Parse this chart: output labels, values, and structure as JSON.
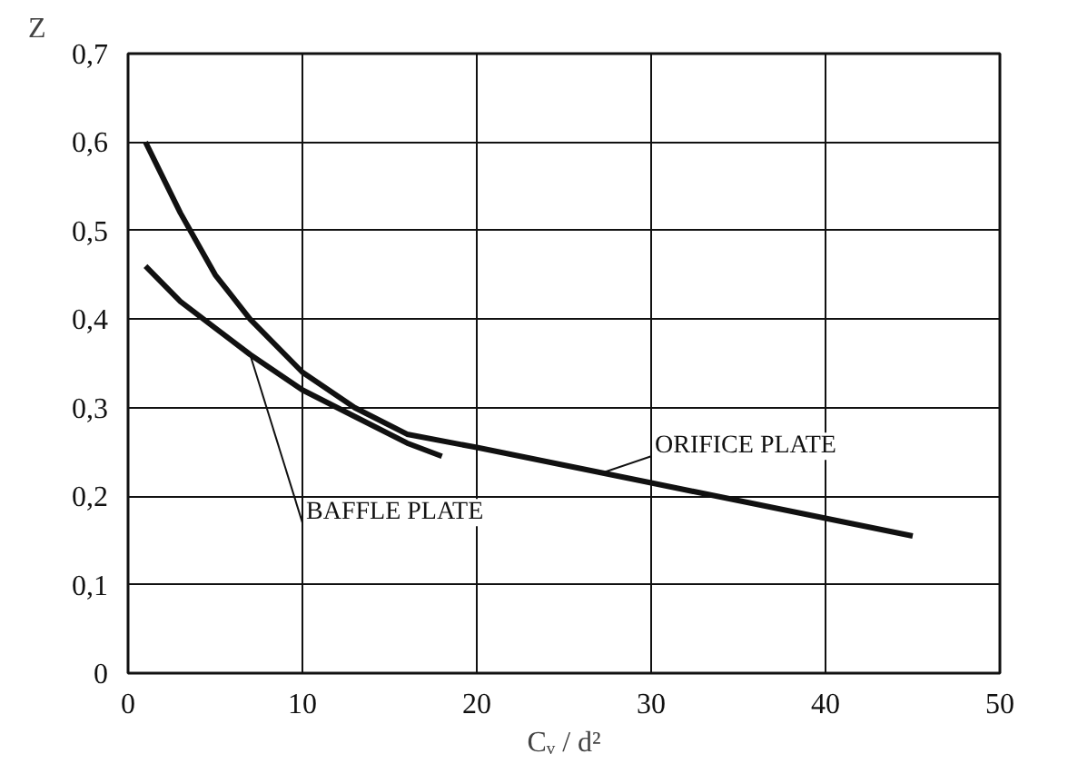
{
  "chart_data": {
    "type": "line",
    "xlabel": "Cᵥ / d²",
    "ylabel": "Z",
    "xlim": [
      0,
      50
    ],
    "xticks": [
      0,
      10,
      20,
      30,
      40,
      50
    ],
    "ylim": [
      0,
      0.7
    ],
    "yticks": [
      0,
      {
        "value": 0.1,
        "label": "0,1"
      },
      {
        "value": 0.2,
        "label": "0,2"
      },
      {
        "value": 0.3,
        "label": "0,3"
      },
      {
        "value": 0.4,
        "label": "0,4"
      },
      {
        "value": 0.5,
        "label": "0,5"
      },
      {
        "value": 0.6,
        "label": "0,6"
      },
      {
        "value": 0.7,
        "label": "0,7"
      }
    ],
    "grid": true,
    "marker": "none",
    "line_style": "solid",
    "series": [
      {
        "color": "#111111",
        "x": [
          1,
          3,
          5,
          7,
          10,
          13,
          16,
          20,
          25,
          30,
          35,
          40,
          45
        ],
        "values": [
          0.6,
          0.52,
          0.45,
          0.4,
          0.34,
          0.3,
          0.27,
          0.255,
          0.235,
          0.215,
          0.195,
          0.175,
          0.155
        ]
      },
      {
        "color": "#111111",
        "x": [
          1,
          3,
          5,
          7,
          10,
          13,
          16,
          18
        ],
        "values": [
          0.46,
          0.42,
          0.39,
          0.36,
          0.32,
          0.29,
          0.26,
          0.245
        ]
      }
    ],
    "annotations": [
      {
        "text": "ORIFICE PLATE",
        "x": 27,
        "y": 0.225
      },
      {
        "text": "BAFFLE PLATE",
        "x": 7,
        "y": 0.36
      }
    ]
  }
}
